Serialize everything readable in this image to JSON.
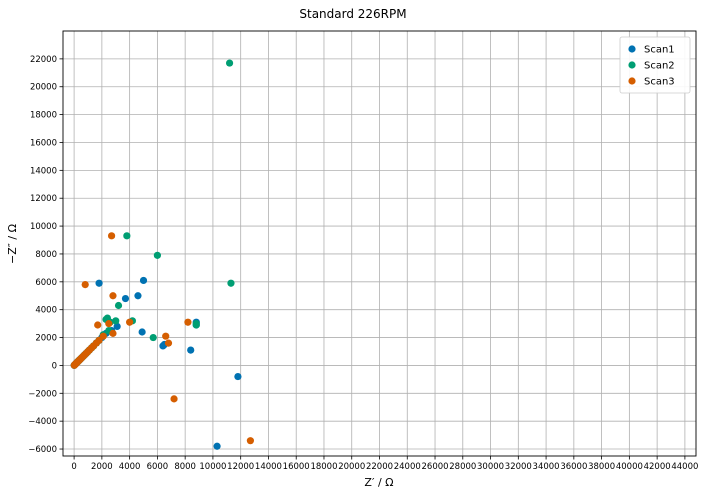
{
  "chart_data": {
    "type": "scatter",
    "title": "Standard 226RPM",
    "xlabel": "Z′ / Ω",
    "ylabel": "−Z″ / Ω",
    "xlim": [
      -800,
      44800
    ],
    "ylim": [
      -6500,
      24000
    ],
    "x_ticks": [
      0,
      2000,
      4000,
      6000,
      8000,
      10000,
      12000,
      14000,
      16000,
      18000,
      20000,
      22000,
      24000,
      26000,
      28000,
      30000,
      32000,
      34000,
      36000,
      38000,
      40000,
      42000,
      44000
    ],
    "y_ticks": [
      -6000,
      -4000,
      -2000,
      0,
      2000,
      4000,
      6000,
      8000,
      10000,
      12000,
      14000,
      16000,
      18000,
      20000,
      22000
    ],
    "grid": true,
    "legend_position": "top-right",
    "series": [
      {
        "name": "Scan1",
        "color": "#0072b2",
        "x": [
          10,
          30,
          60,
          100,
          150,
          200,
          260,
          330,
          400,
          480,
          560,
          650,
          750,
          860,
          980,
          1100,
          1250,
          1400,
          1600,
          1800,
          2000,
          2300,
          2700,
          3100,
          3700,
          4600,
          5000,
          1800,
          4900,
          6400,
          6500,
          8400,
          8800,
          8800,
          11800,
          10300
        ],
        "y": [
          10,
          30,
          60,
          100,
          150,
          200,
          260,
          330,
          400,
          480,
          560,
          650,
          750,
          860,
          980,
          1100,
          1250,
          1400,
          1600,
          1800,
          2000,
          2300,
          2500,
          2800,
          4800,
          5000,
          6100,
          5900,
          2400,
          1400,
          1500,
          1100,
          3100,
          2900,
          -800,
          -5800
        ]
      },
      {
        "name": "Scan2",
        "color": "#009e73",
        "x": [
          10,
          30,
          60,
          100,
          150,
          200,
          260,
          330,
          400,
          480,
          560,
          650,
          750,
          860,
          980,
          1100,
          1250,
          1400,
          1600,
          1800,
          2100,
          2400,
          2600,
          3000,
          3200,
          4200,
          5700,
          11200,
          11300,
          3800,
          6000,
          8800,
          8800,
          2300,
          2500
        ],
        "y": [
          10,
          30,
          60,
          100,
          150,
          200,
          260,
          330,
          400,
          480,
          560,
          650,
          750,
          860,
          980,
          1100,
          1250,
          1400,
          1600,
          1800,
          2200,
          3400,
          3100,
          3200,
          4300,
          3200,
          2000,
          21700,
          5900,
          9300,
          7900,
          3000,
          2900,
          3300,
          2500
        ]
      },
      {
        "name": "Scan3",
        "color": "#d55e00",
        "x": [
          10,
          30,
          60,
          100,
          150,
          200,
          260,
          330,
          400,
          480,
          560,
          650,
          750,
          860,
          980,
          1100,
          1250,
          1400,
          1600,
          1800,
          2100,
          2500,
          2800,
          2700,
          2800,
          1700,
          800,
          4000,
          6600,
          6800,
          8200,
          7200,
          12700
        ],
        "y": [
          10,
          30,
          60,
          100,
          150,
          200,
          260,
          330,
          400,
          480,
          560,
          650,
          750,
          860,
          980,
          1100,
          1250,
          1400,
          1600,
          1800,
          2100,
          3000,
          2300,
          9300,
          5000,
          2900,
          5800,
          3100,
          2100,
          1600,
          3100,
          -2400,
          -5400
        ]
      }
    ]
  }
}
